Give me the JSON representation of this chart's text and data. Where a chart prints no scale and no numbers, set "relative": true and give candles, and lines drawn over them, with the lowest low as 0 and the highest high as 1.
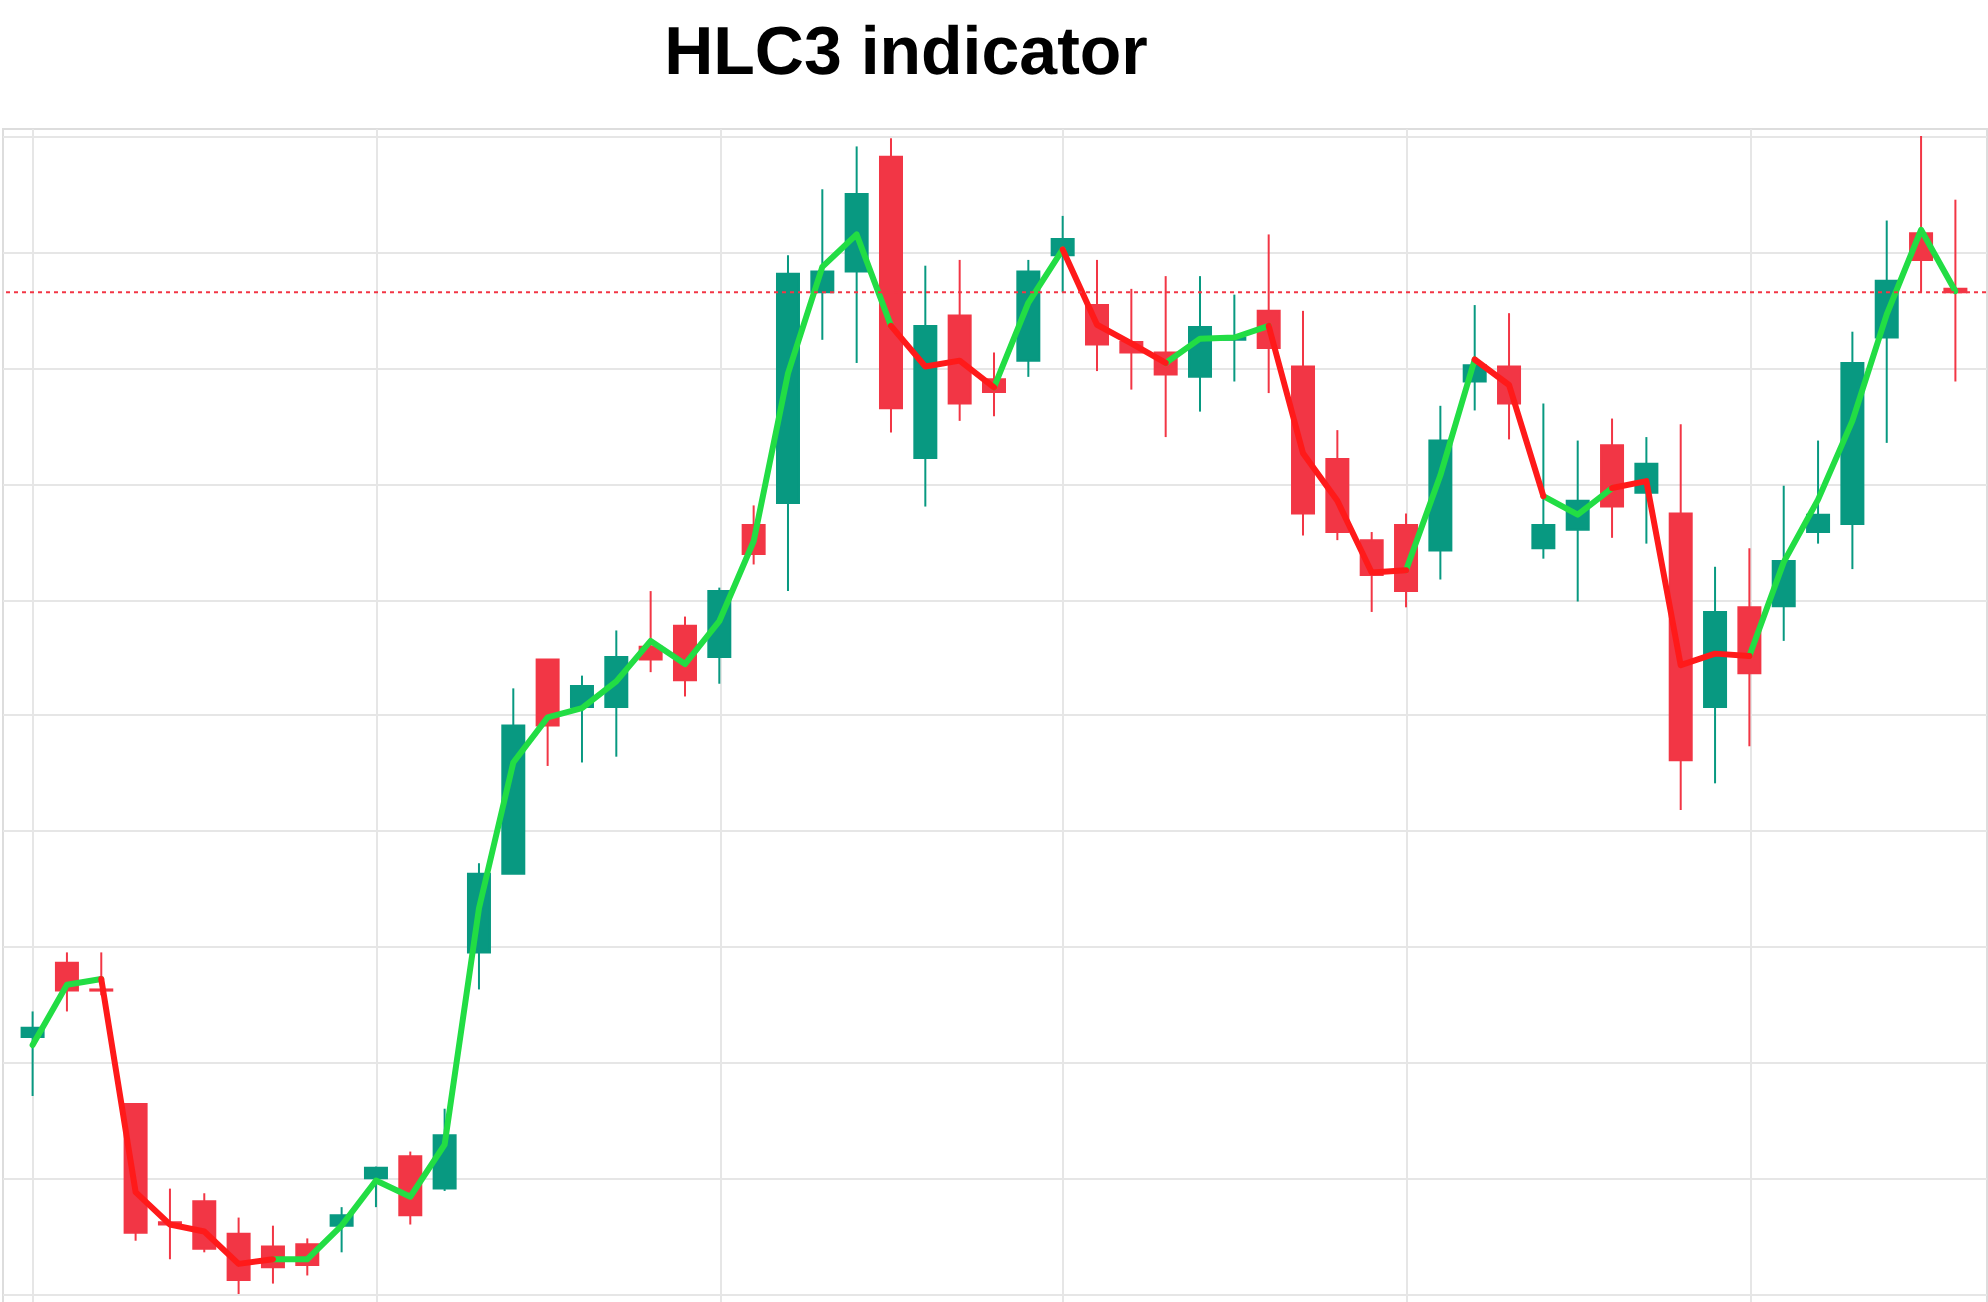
{
  "chart_data": {
    "type": "candlestick",
    "title": "HLC3 indicator",
    "relative": true,
    "grid": true,
    "categories": [
      null,
      null,
      null,
      null,
      null,
      null,
      null,
      null,
      null,
      null,
      null,
      null,
      null,
      null,
      null,
      null,
      null,
      null,
      null,
      null,
      null,
      null,
      null,
      null,
      null,
      null,
      null,
      null,
      null,
      null,
      null,
      null,
      null,
      null,
      null,
      null,
      null,
      null,
      null,
      null,
      null,
      null,
      null,
      null,
      null,
      null,
      null,
      null,
      null,
      null,
      null,
      null,
      null,
      null,
      null,
      null,
      null
    ],
    "ohlc": [
      [
        0.222,
        0.244,
        0.171,
        0.23
      ],
      [
        0.286,
        0.295,
        0.244,
        0.262
      ],
      [
        0.263,
        0.295,
        0.258,
        0.262
      ],
      [
        0.164,
        0.164,
        0.046,
        0.053
      ],
      [
        0.062,
        0.091,
        0.03,
        0.06
      ],
      [
        0.08,
        0.087,
        0.036,
        0.039
      ],
      [
        0.052,
        0.066,
        0,
        0.012
      ],
      [
        0.041,
        0.059,
        0.009,
        0.023
      ],
      [
        0.043,
        0.048,
        0.016,
        0.025
      ],
      [
        0.059,
        0.075,
        0.036,
        0.068
      ],
      [
        0.1,
        0.11,
        0.075,
        0.109
      ],
      [
        0.119,
        0.123,
        0.06,
        0.068
      ],
      [
        0.091,
        0.16,
        0.089,
        0.137
      ],
      [
        0.295,
        0.372,
        0.263,
        0.363
      ],
      [
        0.363,
        0.523,
        0.363,
        0.491
      ],
      [
        0.548,
        0.548,
        0.456,
        0.491
      ],
      [
        0.507,
        0.534,
        0.459,
        0.525
      ],
      [
        0.507,
        0.573,
        0.464,
        0.55
      ],
      [
        0.559,
        0.607,
        0.537,
        0.548
      ],
      [
        0.577,
        0.585,
        0.516,
        0.53
      ],
      [
        0.55,
        0.61,
        0.527,
        0.607
      ],
      [
        0.664,
        0.681,
        0.63,
        0.639
      ],
      [
        0.683,
        0.897,
        0.607,
        0.881
      ],
      [
        0.865,
        0.954,
        0.824,
        0.883
      ],
      [
        0.883,
        0.991,
        0.804,
        0.95
      ],
      [
        0.982,
        0.998,
        0.744,
        0.765
      ],
      [
        0.722,
        0.888,
        0.68,
        0.836
      ],
      [
        0.845,
        0.893,
        0.754,
        0.769
      ],
      [
        0.79,
        0.813,
        0.758,
        0.779
      ],
      [
        0.806,
        0.893,
        0.792,
        0.883
      ],
      [
        0.897,
        0.931,
        0.865,
        0.911
      ],
      [
        0.854,
        0.893,
        0.797,
        0.82
      ],
      [
        0.822,
        0.868,
        0.781,
        0.813
      ],
      [
        0.813,
        0.879,
        0.74,
        0.794
      ],
      [
        0.792,
        0.879,
        0.762,
        0.835
      ],
      [
        0.824,
        0.863,
        0.788,
        0.826
      ],
      [
        0.849,
        0.915,
        0.778,
        0.817
      ],
      [
        0.801,
        0.849,
        0.655,
        0.674
      ],
      [
        0.721,
        0.746,
        0.651,
        0.658
      ],
      [
        0.651,
        0.658,
        0.589,
        0.621
      ],
      [
        0.664,
        0.674,
        0.593,
        0.607
      ],
      [
        0.642,
        0.767,
        0.617,
        0.737
      ],
      [
        0.788,
        0.854,
        0.763,
        0.802
      ],
      [
        0.801,
        0.847,
        0.738,
        0.769
      ],
      [
        0.644,
        0.769,
        0.635,
        0.664
      ],
      [
        0.66,
        0.737,
        0.598,
        0.685
      ],
      [
        0.733,
        0.756,
        0.653,
        0.68
      ],
      [
        0.692,
        0.74,
        0.648,
        0.717
      ],
      [
        0.674,
        0.751,
        0.418,
        0.461
      ],
      [
        0.507,
        0.628,
        0.441,
        0.589
      ],
      [
        0.593,
        0.644,
        0.473,
        0.536
      ],
      [
        0.594,
        0.698,
        0.564,
        0.633
      ],
      [
        0.658,
        0.737,
        0.648,
        0.673
      ],
      [
        0.665,
        0.831,
        0.626,
        0.804
      ],
      [
        0.826,
        0.927,
        0.735,
        0.875
      ],
      [
        0.916,
        1,
        0.865,
        0.893
      ],
      [
        0.868,
        0.945,
        0.788,
        0.865
      ]
    ],
    "colors": [
      "#089981",
      "#f23645",
      "#f23645",
      "#f23645",
      "#f23645",
      "#f23645",
      "#f23645",
      "#f23645",
      "#f23645",
      "#089981",
      "#089981",
      "#f23645",
      "#089981",
      "#089981",
      "#089981",
      "#f23645",
      "#089981",
      "#089981",
      "#f23645",
      "#f23645",
      "#089981",
      "#f23645",
      "#089981",
      "#089981",
      "#089981",
      "#f23645",
      "#089981",
      "#f23645",
      "#f23645",
      "#089981",
      "#089981",
      "#f23645",
      "#f23645",
      "#f23645",
      "#089981",
      "#089981",
      "#f23645",
      "#f23645",
      "#f23645",
      "#f23645",
      "#f23645",
      "#089981",
      "#089981",
      "#f23645",
      "#089981",
      "#089981",
      "#f23645",
      "#089981",
      "#f23645",
      "#089981",
      "#f23645",
      "#089981",
      "#089981",
      "#089981",
      "#089981",
      "#f23645",
      "#f23645"
    ],
    "series": [
      {
        "type": "line",
        "color": "#22dd44",
        "values": [
          0.215,
          0.267,
          0.272,
          null,
          null,
          null,
          null,
          0.03,
          0.03,
          0.059,
          0.098,
          0.084,
          0.129,
          0.333,
          0.459,
          0.498,
          0.506,
          0.529,
          0.564,
          0.544,
          0.581,
          0.65,
          0.795,
          0.887,
          0.915,
          0.836,
          null,
          null,
          0.783,
          0.856,
          0.902,
          null,
          null,
          0.804,
          0.825,
          0.826,
          0.836,
          null,
          null,
          null,
          0.625,
          0.707,
          0.807,
          null,
          0.689,
          0.673,
          0.696,
          null,
          null,
          null,
          0.551,
          0.632,
          0.686,
          0.754,
          0.846,
          0.919,
          0.866
        ]
      },
      {
        "type": "line",
        "color": "#ff1a1a",
        "values": [
          null,
          null,
          0.272,
          0.088,
          0.06,
          0.054,
          0.026,
          0.03,
          null,
          null,
          null,
          null,
          null,
          null,
          null,
          null,
          null,
          null,
          null,
          null,
          null,
          null,
          null,
          null,
          null,
          0.836,
          0.801,
          0.806,
          0.783,
          null,
          0.902,
          0.837,
          0.821,
          0.804,
          null,
          null,
          0.836,
          0.726,
          0.685,
          0.623,
          0.625,
          null,
          0.807,
          0.785,
          0.689,
          null,
          0.696,
          0.702,
          0.543,
          0.553,
          0.551,
          null,
          null,
          null,
          null,
          null,
          null
        ]
      }
    ],
    "ref_lines": [
      {
        "axis": "y",
        "value": 0.865,
        "color": "#f23645",
        "line_style": "dotted"
      }
    ]
  }
}
